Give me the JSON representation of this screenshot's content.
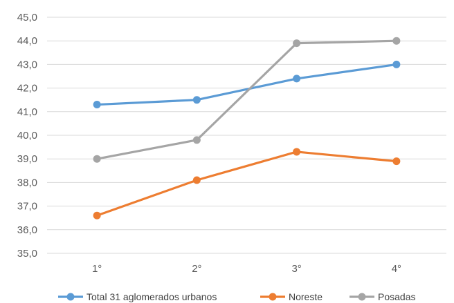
{
  "chart_data": {
    "type": "line",
    "categories": [
      "1°",
      "2°",
      "3°",
      "4°"
    ],
    "series": [
      {
        "name": "Total 31 aglomerados urbanos",
        "values": [
          41.3,
          41.5,
          42.4,
          43.0
        ],
        "color": "#5B9BD5"
      },
      {
        "name": "Noreste",
        "values": [
          36.6,
          38.1,
          39.3,
          38.9
        ],
        "color": "#ED7D31"
      },
      {
        "name": "Posadas",
        "values": [
          39.0,
          39.8,
          43.9,
          44.0
        ],
        "color": "#A5A5A5"
      }
    ],
    "ylim": [
      35,
      45
    ],
    "ytick_step": 1,
    "ytick_labels": [
      "35,0",
      "36,0",
      "37,0",
      "38,0",
      "39,0",
      "40,0",
      "41,0",
      "42,0",
      "43,0",
      "44,0",
      "45,0"
    ],
    "grid": true,
    "legend_position": "bottom"
  }
}
